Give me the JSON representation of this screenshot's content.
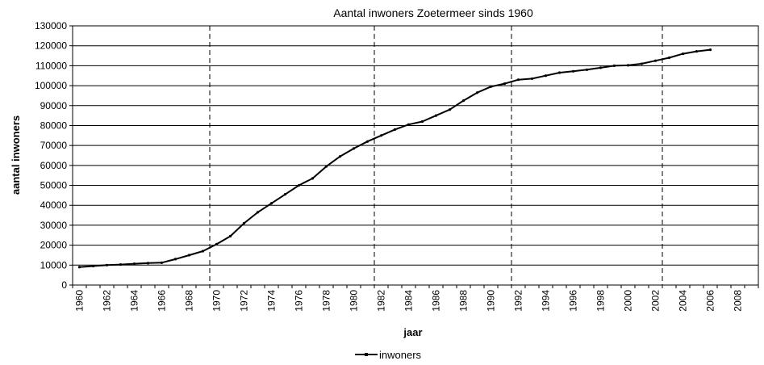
{
  "chart_data": {
    "type": "line",
    "title": "Aantal inwoners Zoetermeer sinds 1960",
    "xlabel": "jaar",
    "ylabel": "aantal inwoners",
    "ylim": [
      0,
      130000
    ],
    "y_tick_step": 10000,
    "x_tick_labels": [
      "1960",
      "1962",
      "1964",
      "1966",
      "1968",
      "1970",
      "1972",
      "1974",
      "1976",
      "1978",
      "1980",
      "1982",
      "1984",
      "1986",
      "1988",
      "1990",
      "1992",
      "1994",
      "1996",
      "1998",
      "2000",
      "2002",
      "2004",
      "2006",
      "2008"
    ],
    "x_categories": [
      1960,
      1961,
      1962,
      1963,
      1964,
      1965,
      1966,
      1967,
      1968,
      1969,
      1970,
      1971,
      1972,
      1973,
      1974,
      1975,
      1976,
      1977,
      1978,
      1979,
      1980,
      1981,
      1982,
      1983,
      1984,
      1985,
      1986,
      1987,
      1988,
      1989,
      1990,
      1991,
      1992,
      1993,
      1994,
      1995,
      1996,
      1997,
      1998,
      1999,
      2000,
      2001,
      2002,
      2003,
      2004,
      2005,
      2006,
      2007,
      2008,
      2009
    ],
    "grid": "horizontal",
    "legend_position": "bottom-center",
    "vertical_markers": [
      1969,
      1981,
      1991,
      2002
    ],
    "series": [
      {
        "name": "inwoners",
        "color": "#000000",
        "x": [
          1960,
          1961,
          1962,
          1963,
          1964,
          1965,
          1966,
          1967,
          1968,
          1969,
          1970,
          1971,
          1972,
          1973,
          1974,
          1975,
          1976,
          1977,
          1978,
          1979,
          1980,
          1981,
          1982,
          1983,
          1984,
          1985,
          1986,
          1987,
          1988,
          1989,
          1990,
          1991,
          1992,
          1993,
          1994,
          1995,
          1996,
          1997,
          1998,
          1999,
          2000,
          2001,
          2002,
          2003,
          2004,
          2005,
          2006
        ],
        "values": [
          9000,
          9500,
          10000,
          10300,
          10700,
          11000,
          11200,
          13000,
          15000,
          17000,
          20500,
          24500,
          31000,
          36500,
          41000,
          45500,
          50000,
          53500,
          59500,
          64500,
          68500,
          72000,
          75000,
          78000,
          80500,
          82000,
          85000,
          88000,
          92500,
          96500,
          99500,
          101000,
          103000,
          103500,
          105000,
          106500,
          107200,
          108000,
          109000,
          110000,
          110200,
          111000,
          112500,
          114000,
          116000,
          117200,
          118000
        ]
      }
    ]
  }
}
